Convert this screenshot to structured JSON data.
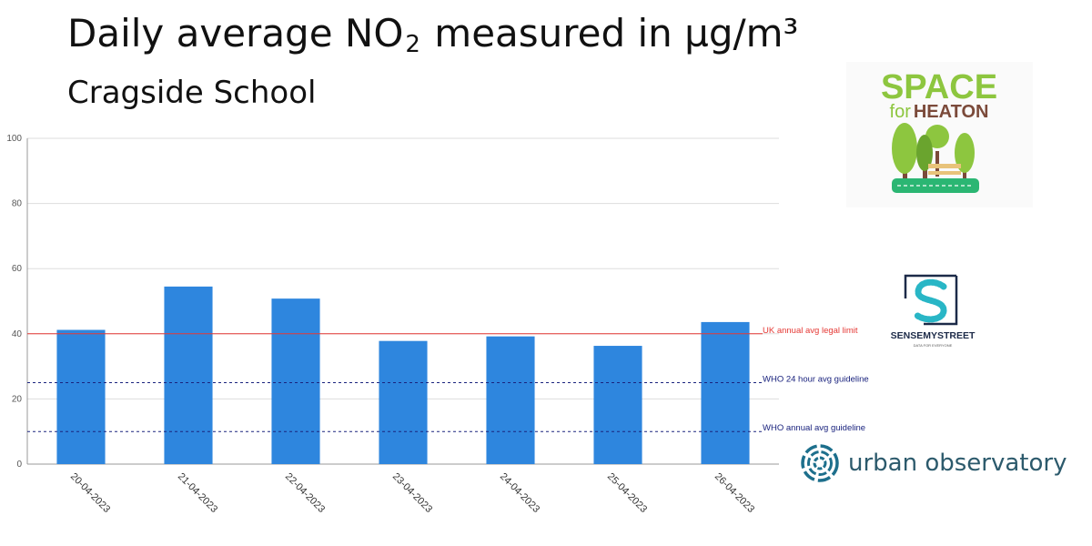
{
  "header": {
    "title_pre": "Daily average NO",
    "title_sub": "2",
    "title_post": " measured in µg/m³",
    "subtitle": "Cragside School"
  },
  "chart_data": {
    "type": "bar",
    "categories": [
      "20-04-2023",
      "21-04-2023",
      "22-04-2023",
      "23-04-2023",
      "24-04-2023",
      "25-04-2023",
      "26-04-2023"
    ],
    "values": [
      41.2,
      54.5,
      50.8,
      37.8,
      39.2,
      36.3,
      43.6
    ],
    "ylim": [
      0,
      100
    ],
    "yticks": [
      0,
      20,
      40,
      60,
      80,
      100
    ],
    "grid": true,
    "bar_color": "#2e86de",
    "reference_lines": [
      {
        "label": "UK annual avg legal limit",
        "value": 40,
        "color": "#e53935",
        "style": "solid"
      },
      {
        "label": "WHO 24 hour avg guideline",
        "value": 25,
        "color": "#1a237e",
        "style": "dashed"
      },
      {
        "label": "WHO annual avg guideline",
        "value": 10,
        "color": "#1a237e",
        "style": "dashed"
      }
    ]
  },
  "logos": {
    "space_for_heaton": {
      "line1": "SPACE",
      "line2_pre": "for",
      "line2_post": "HEATON",
      "green": "#8dc63f",
      "brown": "#7b4a3a"
    },
    "sense_my_street": {
      "name": "SENSEMYSTREET",
      "tagline": "DATA FOR EVERYONE",
      "accent": "#29b6c6"
    },
    "urban_observatory": {
      "name": "urban observatory",
      "accent": "#1d6f8c"
    }
  }
}
